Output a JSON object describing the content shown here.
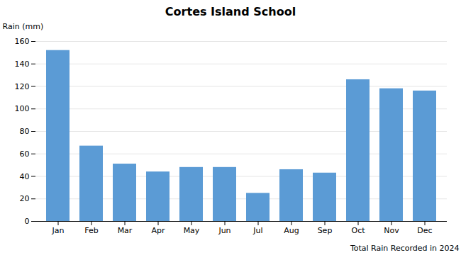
{
  "chart_data": {
    "type": "bar",
    "title": "Cortes Island School",
    "xlabel": "Total Rain Recorded in 2024",
    "ylabel": "Rain (mm)",
    "categories": [
      "Jan",
      "Feb",
      "Mar",
      "Apr",
      "May",
      "Jun",
      "Jul",
      "Aug",
      "Sep",
      "Oct",
      "Nov",
      "Dec"
    ],
    "values": [
      152,
      67,
      51,
      44,
      48,
      48,
      25,
      46,
      43,
      126,
      118,
      116
    ],
    "color": "#5b9bd5",
    "ylim": [
      0,
      160
    ],
    "yticks": [
      0,
      20,
      40,
      60,
      80,
      100,
      120,
      140,
      160
    ],
    "grid": true
  }
}
